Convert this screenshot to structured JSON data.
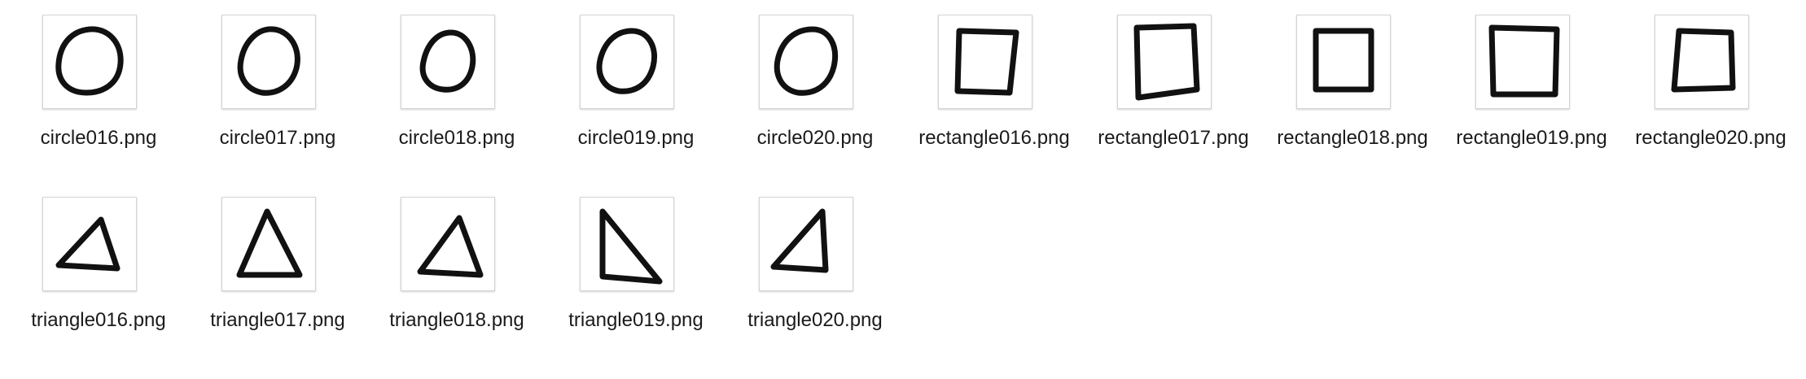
{
  "files": [
    {
      "name": "circle016.png",
      "shape": "circle-icon"
    },
    {
      "name": "circle017.png",
      "shape": "circle-icon"
    },
    {
      "name": "circle018.png",
      "shape": "circle-icon"
    },
    {
      "name": "circle019.png",
      "shape": "circle-icon"
    },
    {
      "name": "circle020.png",
      "shape": "circle-icon"
    },
    {
      "name": "rectangle016.png",
      "shape": "rectangle-icon"
    },
    {
      "name": "rectangle017.png",
      "shape": "rectangle-icon"
    },
    {
      "name": "rectangle018.png",
      "shape": "rectangle-icon"
    },
    {
      "name": "rectangle019.png",
      "shape": "rectangle-icon"
    },
    {
      "name": "rectangle020.png",
      "shape": "rectangle-icon"
    },
    {
      "name": "triangle016.png",
      "shape": "triangle-icon"
    },
    {
      "name": "triangle017.png",
      "shape": "triangle-icon"
    },
    {
      "name": "triangle018.png",
      "shape": "triangle-icon"
    },
    {
      "name": "triangle019.png",
      "shape": "triangle-icon"
    },
    {
      "name": "triangle020.png",
      "shape": "triangle-icon"
    }
  ],
  "colors": {
    "stroke": "#111111",
    "label": "#1a1a1a",
    "frame_border": "#d4d4d4"
  }
}
